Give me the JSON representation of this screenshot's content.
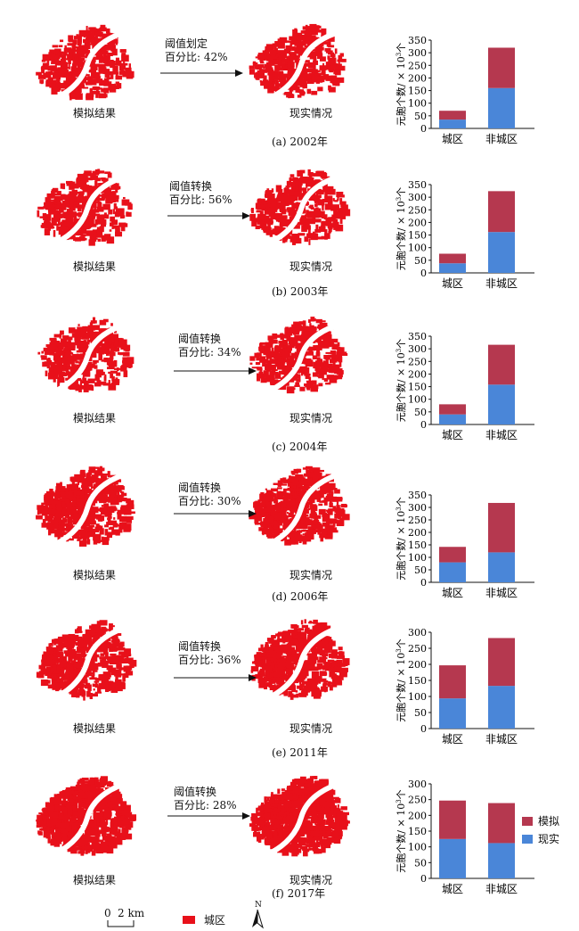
{
  "labels": {
    "sim": "模拟结果",
    "real": "现实情况"
  },
  "axis": {
    "ylabel_html_parts": [
      "元胞个数/ × 10",
      "3",
      "个"
    ]
  },
  "legend": {
    "sim": "模拟",
    "real": "现实"
  },
  "bottom": {
    "scale_zero": "0",
    "scale_value": "2 km",
    "urban_legend": "城区",
    "north": "N"
  },
  "colors": {
    "sim": "#b5384f",
    "real": "#4a86d8",
    "map": "#e8101a"
  },
  "panels": [
    {
      "caption": "(a) 2002年",
      "threshold_line1": "阈值划定",
      "threshold_line2": "百分比: 42%"
    },
    {
      "caption": "(b) 2003年",
      "threshold_line1": "阈值转换",
      "threshold_line2": "百分比: 56%"
    },
    {
      "caption": "(c) 2004年",
      "threshold_line1": "阈值转换",
      "threshold_line2": "百分比: 34%"
    },
    {
      "caption": "(d) 2006年",
      "threshold_line1": "阈值转换",
      "threshold_line2": "百分比: 30%"
    },
    {
      "caption": "(e) 2011年",
      "threshold_line1": "阈值转换",
      "threshold_line2": "百分比: 36%"
    },
    {
      "caption": "(f) 2017年",
      "threshold_line1": "阈值转换",
      "threshold_line2": "百分比: 28%"
    }
  ],
  "chart_data": [
    {
      "type": "bar",
      "stacked": true,
      "categories": [
        "城区",
        "非城区"
      ],
      "ylim": [
        0,
        350
      ],
      "yticks": [
        0,
        50,
        100,
        150,
        200,
        250,
        300,
        350
      ],
      "series": [
        {
          "name": "现实",
          "values": [
            35,
            160
          ]
        },
        {
          "name": "模拟",
          "values": [
            35,
            160
          ]
        }
      ]
    },
    {
      "type": "bar",
      "stacked": true,
      "categories": [
        "城区",
        "非城区"
      ],
      "ylim": [
        0,
        350
      ],
      "yticks": [
        0,
        50,
        100,
        150,
        200,
        250,
        300,
        350
      ],
      "series": [
        {
          "name": "现实",
          "values": [
            38,
            162
          ]
        },
        {
          "name": "模拟",
          "values": [
            38,
            162
          ]
        }
      ]
    },
    {
      "type": "bar",
      "stacked": true,
      "categories": [
        "城区",
        "非城区"
      ],
      "ylim": [
        0,
        350
      ],
      "yticks": [
        0,
        50,
        100,
        150,
        200,
        250,
        300,
        350
      ],
      "series": [
        {
          "name": "现实",
          "values": [
            40,
            158
          ]
        },
        {
          "name": "模拟",
          "values": [
            40,
            158
          ]
        }
      ]
    },
    {
      "type": "bar",
      "stacked": true,
      "categories": [
        "城区",
        "非城区"
      ],
      "ylim": [
        0,
        350
      ],
      "yticks": [
        0,
        50,
        100,
        150,
        200,
        250,
        300,
        350
      ],
      "series": [
        {
          "name": "现实",
          "values": [
            80,
            120
          ]
        },
        {
          "name": "模拟",
          "values": [
            62,
            198
          ]
        }
      ]
    },
    {
      "type": "bar",
      "stacked": true,
      "categories": [
        "城区",
        "非城区"
      ],
      "ylim": [
        0,
        300
      ],
      "yticks": [
        0,
        50,
        100,
        150,
        200,
        250,
        300
      ],
      "series": [
        {
          "name": "现实",
          "values": [
            94,
            133
          ]
        },
        {
          "name": "模拟",
          "values": [
            103,
            149
          ]
        }
      ]
    },
    {
      "type": "bar",
      "stacked": true,
      "categories": [
        "城区",
        "非城区"
      ],
      "ylim": [
        0,
        300
      ],
      "yticks": [
        0,
        50,
        100,
        150,
        200,
        250,
        300
      ],
      "series": [
        {
          "name": "现实",
          "values": [
            125,
            112
          ]
        },
        {
          "name": "模拟",
          "values": [
            122,
            127
          ]
        }
      ]
    }
  ]
}
